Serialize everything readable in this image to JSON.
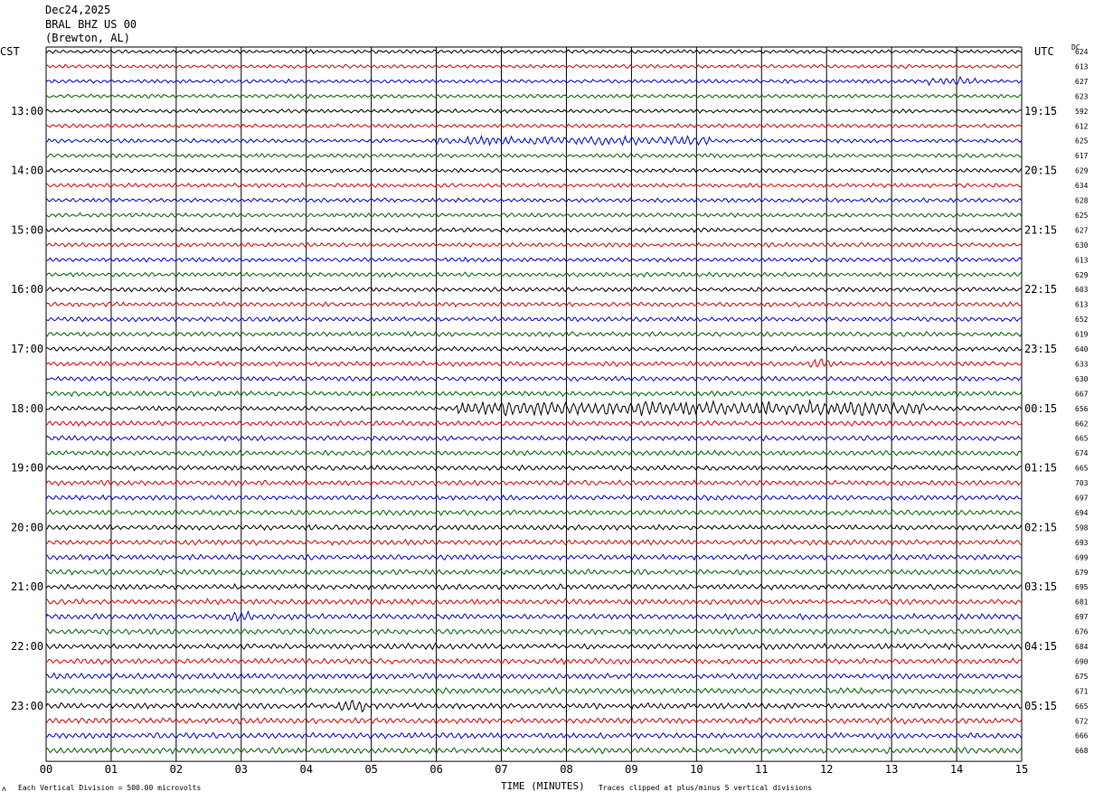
{
  "header": {
    "date": "Dec24,2025",
    "station": "BRAL BHZ US 00",
    "location": "(Brewton, AL)"
  },
  "left_timezone": "CST",
  "right_timezone": "UTC",
  "dc_label": "DC",
  "footer": {
    "scale_note": "Each Vertical Division =  500.00 microvolts",
    "xlabel": "TIME (MINUTES)",
    "clip_note": "Traces clipped at plus/minus 5 vertical divisions"
  },
  "colors": {
    "trace_cycle": [
      "#000000",
      "#e00000",
      "#0000e0",
      "#006400"
    ],
    "grid": "#000000"
  },
  "chart_data": {
    "type": "line",
    "title": "Dec24,2025",
    "xlabel": "TIME (MINUTES)",
    "ylabel": "",
    "xlim": [
      0,
      15
    ],
    "x_ticks": [
      "00",
      "01",
      "02",
      "03",
      "04",
      "05",
      "06",
      "07",
      "08",
      "09",
      "10",
      "11",
      "12",
      "13",
      "14",
      "15"
    ],
    "left_hour_labels": [
      "13:00",
      "14:00",
      "15:00",
      "16:00",
      "17:00",
      "18:00",
      "19:00",
      "20:00",
      "21:00",
      "22:00",
      "23:00"
    ],
    "right_hour_labels": [
      "19:15",
      "20:15",
      "21:15",
      "22:15",
      "23:15",
      "00:15",
      "01:15",
      "02:15",
      "03:15",
      "04:15",
      "05:15"
    ],
    "trace_dc_values": [
      "624",
      "613",
      "627",
      "623",
      "592",
      "612",
      "625",
      "617",
      "629",
      "634",
      "628",
      "625",
      "627",
      "630",
      "613",
      "629",
      "603",
      "613",
      "652",
      "619",
      "640",
      "633",
      "630",
      "667",
      "656",
      "662",
      "665",
      "674",
      "665",
      "703",
      "697",
      "694",
      "598",
      "693",
      "699",
      "679",
      "695",
      "681",
      "697",
      "676",
      "684",
      "690",
      "675",
      "671",
      "665",
      "672",
      "666",
      "668"
    ],
    "trace_count": 48,
    "minutes_per_trace": 15,
    "events": [
      {
        "trace": 2,
        "start_min": 13.5,
        "end_min": 14.3,
        "level": "moderate"
      },
      {
        "trace": 6,
        "start_min": 6.0,
        "end_min": 10.2,
        "level": "moderate"
      },
      {
        "trace": 24,
        "start_min": 6.3,
        "end_min": 13.5,
        "level": "high"
      },
      {
        "trace": 21,
        "start_min": 11.7,
        "end_min": 12.1,
        "level": "moderate"
      },
      {
        "trace": 38,
        "start_min": 2.8,
        "end_min": 3.2,
        "level": "moderate"
      },
      {
        "trace": 44,
        "start_min": 4.5,
        "end_min": 4.9,
        "level": "moderate"
      }
    ]
  }
}
